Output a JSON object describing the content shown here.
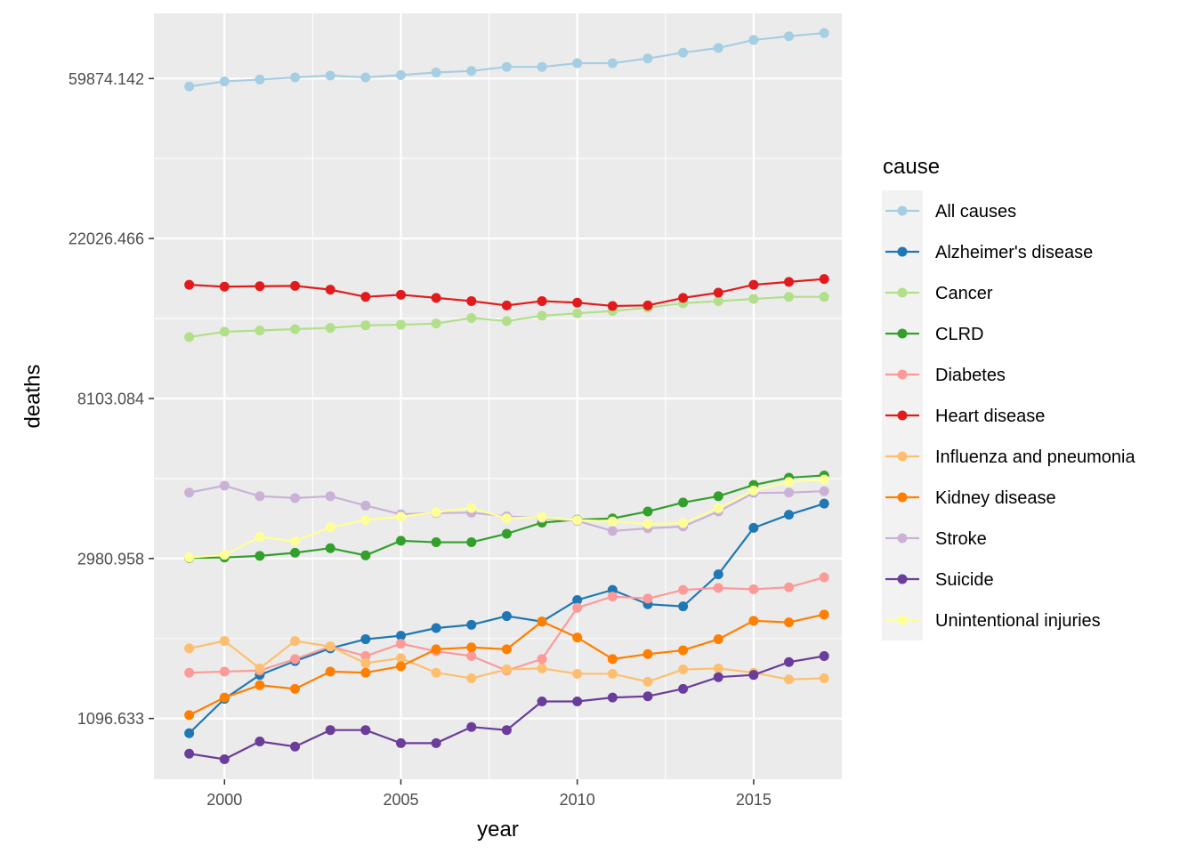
{
  "chart_data": {
    "type": "line",
    "xlabel": "year",
    "ylabel": "deaths",
    "y_scale": "log",
    "x_ticks": [
      2000,
      2005,
      2010,
      2015
    ],
    "x_tick_labels": [
      "2000",
      "2005",
      "2010",
      "2015"
    ],
    "y_ticks": [
      1096.633,
      2980.958,
      8103.084,
      22026.466,
      59874.142
    ],
    "y_tick_labels": [
      "1096.633",
      "2980.958",
      "8103.084",
      "22026.466",
      "59874.142"
    ],
    "xlim": [
      1998.0,
      2017.5
    ],
    "ylim": [
      750,
      90000
    ],
    "grid": true,
    "legend_title": "cause",
    "legend_position": "right",
    "x": [
      1999,
      2000,
      2001,
      2002,
      2003,
      2004,
      2005,
      2006,
      2007,
      2008,
      2009,
      2010,
      2011,
      2012,
      2013,
      2014,
      2015,
      2016,
      2017
    ],
    "series": [
      {
        "name": "All causes",
        "color": "#A6CEE3",
        "values": [
          57000,
          58800,
          59500,
          60300,
          61000,
          60300,
          61200,
          62200,
          62800,
          64400,
          64400,
          65900,
          65900,
          67900,
          70400,
          72500,
          76200,
          78000,
          79600
        ]
      },
      {
        "name": "Alzheimer's disease",
        "color": "#1F78B4",
        "values": [
          1000,
          1240,
          1440,
          1570,
          1700,
          1800,
          1840,
          1930,
          1970,
          2080,
          2010,
          2300,
          2450,
          2240,
          2210,
          2700,
          3610,
          3920,
          4200
        ]
      },
      {
        "name": "Cancer",
        "color": "#B2DF8A",
        "values": [
          11900,
          12300,
          12400,
          12500,
          12600,
          12800,
          12850,
          12950,
          13400,
          13150,
          13600,
          13800,
          14000,
          14300,
          14700,
          14900,
          15100,
          15300,
          15300
        ]
      },
      {
        "name": "CLRD",
        "color": "#33A02C",
        "values": [
          2990,
          3000,
          3030,
          3090,
          3180,
          3040,
          3330,
          3300,
          3300,
          3480,
          3730,
          3800,
          3830,
          4000,
          4230,
          4400,
          4720,
          4940,
          5010
        ]
      },
      {
        "name": "Diabetes",
        "color": "#FB9A99",
        "values": [
          1460,
          1470,
          1480,
          1590,
          1720,
          1620,
          1750,
          1670,
          1620,
          1480,
          1590,
          2190,
          2350,
          2320,
          2450,
          2480,
          2460,
          2490,
          2650
        ]
      },
      {
        "name": "Heart disease",
        "color": "#E31A1C",
        "values": [
          16500,
          16300,
          16350,
          16380,
          16000,
          15300,
          15500,
          15200,
          14900,
          14500,
          14900,
          14750,
          14450,
          14500,
          15200,
          15700,
          16500,
          16800,
          17100
        ]
      },
      {
        "name": "Influenza and pneumonia",
        "color": "#FDBF6F",
        "values": [
          1700,
          1780,
          1500,
          1780,
          1720,
          1550,
          1600,
          1460,
          1410,
          1490,
          1500,
          1450,
          1450,
          1380,
          1490,
          1500,
          1460,
          1400,
          1410
        ]
      },
      {
        "name": "Kidney disease",
        "color": "#FF7F00",
        "values": [
          1120,
          1250,
          1350,
          1320,
          1470,
          1460,
          1520,
          1690,
          1710,
          1690,
          2010,
          1820,
          1590,
          1640,
          1680,
          1800,
          2020,
          2000,
          2100
        ]
      },
      {
        "name": "Stroke",
        "color": "#CAB2D6",
        "values": [
          4500,
          4700,
          4400,
          4350,
          4400,
          4150,
          3930,
          3960,
          3970,
          3880,
          3840,
          3770,
          3540,
          3600,
          3640,
          4000,
          4490,
          4500,
          4540
        ]
      },
      {
        "name": "Suicide",
        "color": "#6A3D9A",
        "values": [
          880,
          850,
          950,
          920,
          1020,
          1020,
          940,
          940,
          1040,
          1020,
          1220,
          1220,
          1250,
          1260,
          1320,
          1420,
          1440,
          1560,
          1620
        ]
      },
      {
        "name": "Unintentional injuries",
        "color": "#FFFF99",
        "values": [
          3000,
          3050,
          3410,
          3320,
          3620,
          3790,
          3870,
          3980,
          4090,
          3830,
          3860,
          3790,
          3760,
          3700,
          3720,
          4080,
          4560,
          4810,
          4880
        ]
      }
    ]
  }
}
